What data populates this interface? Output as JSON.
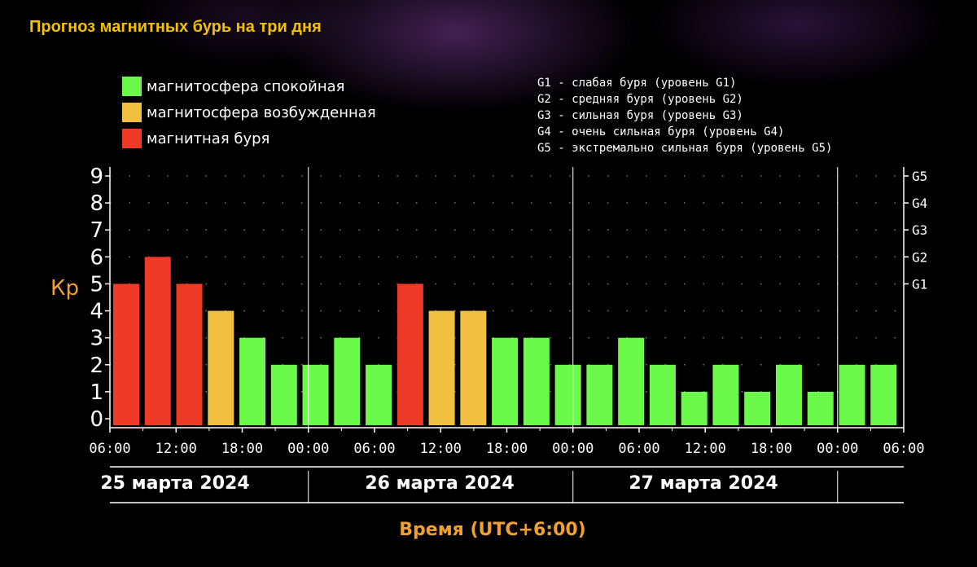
{
  "page_title": "Прогноз магнитных бурь на три дня",
  "legend": [
    {
      "label": "магнитосфера спокойная",
      "color": "#6cfa4a"
    },
    {
      "label": "магнитосфера возбужденная",
      "color": "#f2c040"
    },
    {
      "label": "магнитная буря",
      "color": "#ee3a26"
    }
  ],
  "g_legend": [
    "G1 - слабая буря (уровень G1)",
    "G2 - средняя буря (уровень G2)",
    "G3 - сильная буря (уровень G3)",
    "G4 - очень сильная буря (уровень G4)",
    "G5 - экстремально сильная буря (уровень G5)"
  ],
  "chart_data": {
    "type": "bar",
    "ylabel": "Кp",
    "xlabel": "Время (UTC+6:00)",
    "ylim": [
      0,
      9
    ],
    "y_ticks": [
      "0",
      "1",
      "2",
      "3",
      "4",
      "5",
      "6",
      "7",
      "8",
      "9"
    ],
    "right_ticks": [
      {
        "label": "G1",
        "value": 5
      },
      {
        "label": "G2",
        "value": 6
      },
      {
        "label": "G3",
        "value": 7
      },
      {
        "label": "G4",
        "value": 8
      },
      {
        "label": "G5",
        "value": 9
      }
    ],
    "x_ticks": [
      "06:00",
      "12:00",
      "18:00",
      "00:00",
      "06:00",
      "12:00",
      "18:00",
      "00:00",
      "06:00",
      "12:00",
      "18:00",
      "00:00",
      "06:00"
    ],
    "days": [
      "25 марта 2024",
      "26 марта 2024",
      "27 марта 2024"
    ],
    "values": [
      5,
      6,
      5,
      4,
      3,
      2,
      2,
      3,
      2,
      5,
      4,
      4,
      3,
      3,
      2,
      2,
      3,
      2,
      1,
      2,
      1,
      2,
      1,
      2,
      2
    ],
    "levels": [
      "storm",
      "storm",
      "storm",
      "excited",
      "calm",
      "calm",
      "calm",
      "calm",
      "calm",
      "storm",
      "excited",
      "excited",
      "calm",
      "calm",
      "calm",
      "calm",
      "calm",
      "calm",
      "calm",
      "calm",
      "calm",
      "calm",
      "calm",
      "calm",
      "calm"
    ],
    "level_colors": {
      "calm": "#6cfa4a",
      "excited": "#f2c040",
      "storm": "#ee3a26"
    },
    "grid": true
  }
}
